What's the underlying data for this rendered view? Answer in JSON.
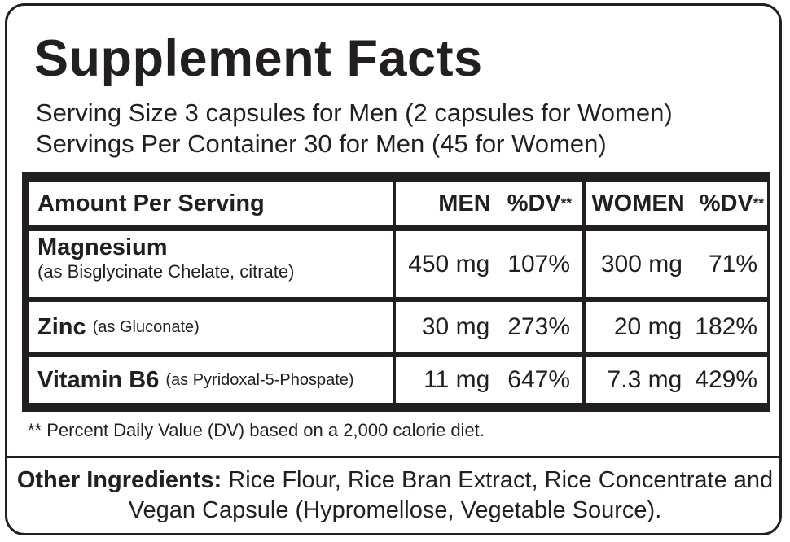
{
  "title": "Supplement Facts",
  "serving": {
    "size_line": "Serving Size 3 capsules for Men (2 capsules for Women)",
    "per_container_line": "Servings Per Container 30 for Men (45 for Women)"
  },
  "table": {
    "header": {
      "amount_label": "Amount Per Serving",
      "men_label": "MEN",
      "men_dv_label": "%DV",
      "women_label": "WOMEN",
      "women_dv_label": "%DV",
      "dv_marker": "**"
    },
    "rows": [
      {
        "name": "Magnesium",
        "source": "(as Bisglycinate Chelate, citrate)",
        "men_amount": "450 mg",
        "men_dv": "107%",
        "women_amount": "300 mg",
        "women_dv": "71%"
      },
      {
        "name": "Zinc",
        "source": "(as Gluconate)",
        "men_amount": "30 mg",
        "men_dv": "273%",
        "women_amount": "20 mg",
        "women_dv": "182%"
      },
      {
        "name": "Vitamin B6",
        "source": "(as Pyridoxal-5-Phospate)",
        "men_amount": "11 mg",
        "men_dv": "647%",
        "women_amount": "7.3 mg",
        "women_dv": "429%"
      }
    ]
  },
  "footnote": "** Percent Daily Value (DV) based on a 2,000 calorie diet.",
  "other_ingredients": {
    "label": "Other Ingredients:",
    "text": " Rice Flour, Rice Bran Extract, Rice Concentrate and Vegan Capsule (Hypromellose, Vegetable Source)."
  },
  "colors": {
    "ink": "#231f20",
    "background": "#ffffff"
  }
}
